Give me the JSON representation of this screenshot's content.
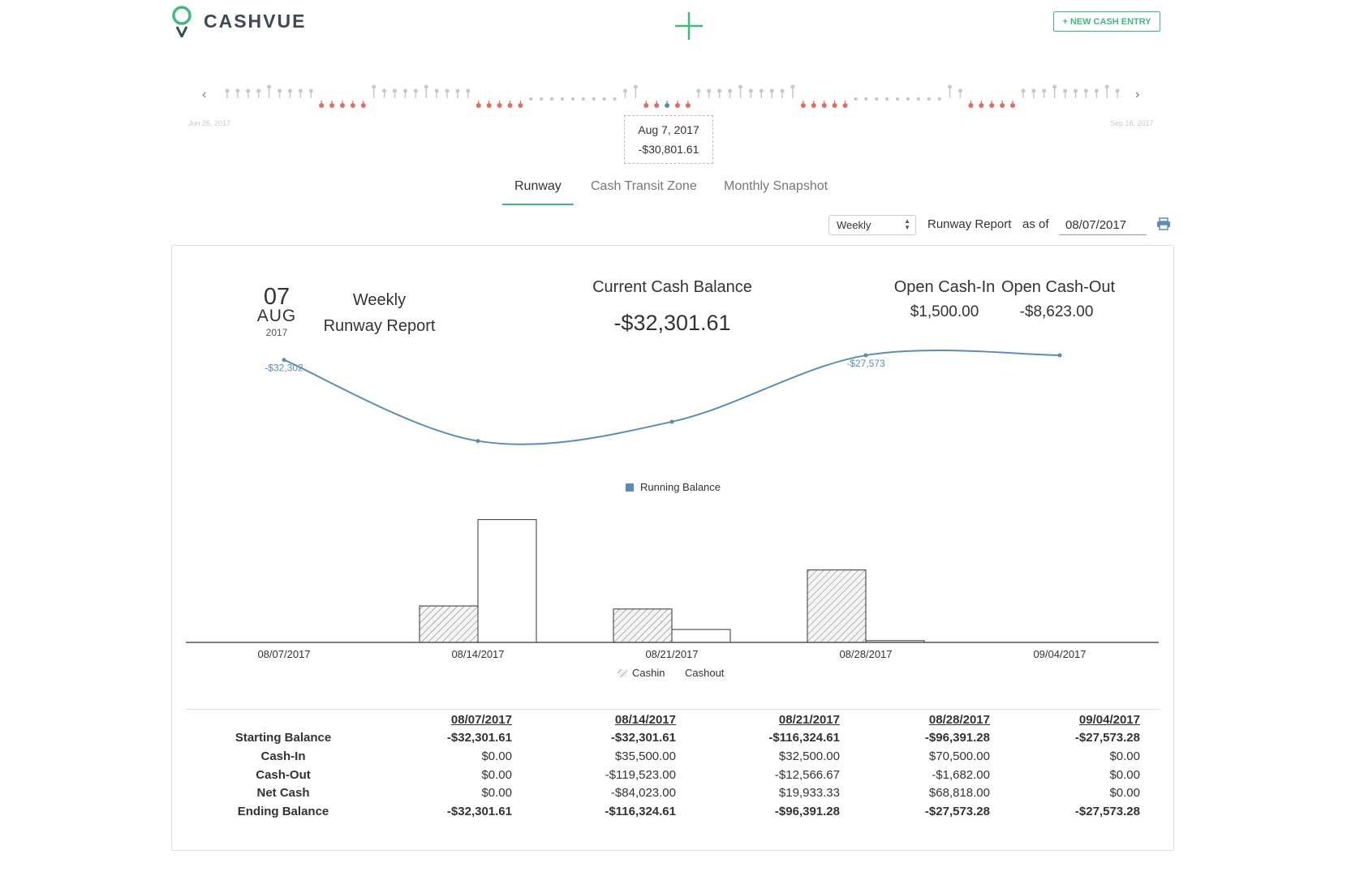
{
  "app": {
    "name": "CASHVUE"
  },
  "header": {
    "new_entry_label": "+ NEW CASH ENTRY"
  },
  "timeline": {
    "start_date": "Jun 26, 2017",
    "end_date": "Sep 18, 2017",
    "tooltip_date": "Aug 7, 2017",
    "tooltip_value": "-$30,801.61",
    "prev_icon": "chevron-left-icon",
    "next_icon": "chevron-right-icon"
  },
  "tabs": [
    {
      "label": "Runway",
      "active": true
    },
    {
      "label": "Cash Transit Zone",
      "active": false
    },
    {
      "label": "Monthly Snapshot",
      "active": false
    }
  ],
  "controls": {
    "period": "Weekly",
    "report_label": "Runway Report",
    "as_of_label": "as of",
    "as_of_date": "08/07/2017"
  },
  "report": {
    "day": "07",
    "month": "AUG",
    "year": "2017",
    "title_line1": "Weekly",
    "title_line2": "Runway Report",
    "current_balance_label": "Current Cash Balance",
    "current_balance_value": "-$32,301.61",
    "open_cash_in_label": "Open Cash-In",
    "open_cash_in_value": "$1,500.00",
    "open_cash_out_label": "Open Cash-Out",
    "open_cash_out_value": "-$8,623.00"
  },
  "chart_data": [
    {
      "type": "line",
      "categories": [
        "08/07/2017",
        "08/14/2017",
        "08/21/2017",
        "08/28/2017",
        "09/04/2017"
      ],
      "series": [
        {
          "name": "Running Balance",
          "values": [
            -32301.61,
            -116324.61,
            -96391.28,
            -27573.28,
            -27573.28
          ],
          "color": "#5b8db8"
        }
      ],
      "data_labels": [
        {
          "index": 0,
          "text": "-$32,302"
        },
        {
          "index": 3,
          "text": "-$27,573"
        }
      ],
      "legend": "bottom"
    },
    {
      "type": "bar",
      "categories": [
        "08/07/2017",
        "08/14/2017",
        "08/21/2017",
        "08/28/2017",
        "09/04/2017"
      ],
      "series": [
        {
          "name": "Cashin",
          "values": [
            0,
            35500,
            32500,
            70500,
            0
          ],
          "pattern": "hatched"
        },
        {
          "name": "Cashout",
          "values": [
            0,
            119523,
            12566.67,
            1682,
            0
          ],
          "pattern": "outline"
        }
      ],
      "legend": "bottom"
    }
  ],
  "table": {
    "dates": [
      "08/07/2017",
      "08/14/2017",
      "08/21/2017",
      "08/28/2017",
      "09/04/2017"
    ],
    "rows": [
      {
        "label": "Starting Balance",
        "bold": true,
        "values": [
          "-$32,301.61",
          "-$32,301.61",
          "-$116,324.61",
          "-$96,391.28",
          "-$27,573.28"
        ]
      },
      {
        "label": "Cash-In",
        "bold": false,
        "values": [
          "$0.00",
          "$35,500.00",
          "$32,500.00",
          "$70,500.00",
          "$0.00"
        ]
      },
      {
        "label": "Cash-Out",
        "bold": false,
        "values": [
          "$0.00",
          "-$119,523.00",
          "-$12,566.67",
          "-$1,682.00",
          "$0.00"
        ]
      },
      {
        "label": "Net Cash",
        "bold": false,
        "values": [
          "$0.00",
          "-$84,023.00",
          "$19,933.33",
          "$68,818.00",
          "$0.00"
        ]
      },
      {
        "label": "Ending Balance",
        "bold": true,
        "values": [
          "-$32,301.61",
          "-$116,324.61",
          "-$96,391.28",
          "-$27,573.28",
          "-$27,573.28"
        ]
      }
    ]
  },
  "colors": {
    "accent": "#3fba7e",
    "negative": "#e36b63",
    "line": "#5b8db8",
    "pin": "#c8c8c8"
  }
}
